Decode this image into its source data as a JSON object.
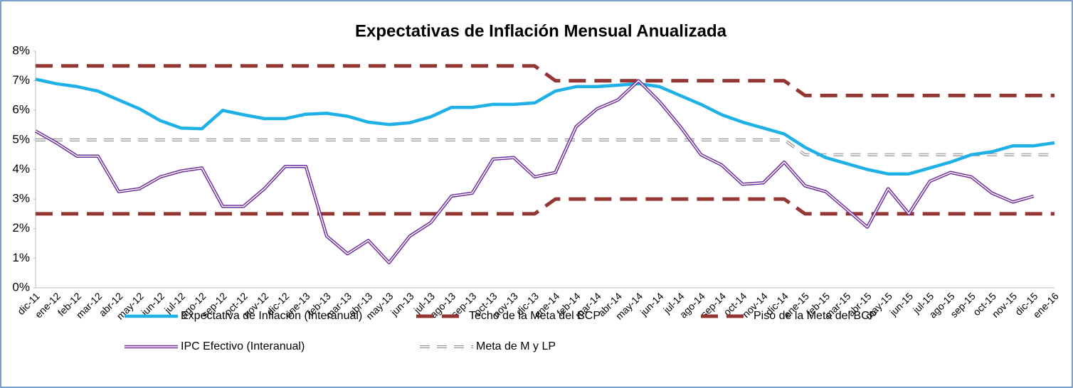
{
  "chart_data": {
    "type": "line",
    "title": "Expectativas de Inflación Mensual Anualizada",
    "categories": [
      "dic-11",
      "ene-12",
      "feb-12",
      "mar-12",
      "abr-12",
      "may-12",
      "jun-12",
      "jul-12",
      "ago-12",
      "sep-12",
      "oct-12",
      "nov-12",
      "dic-12",
      "ene-13",
      "feb-13",
      "mar-13",
      "abr-13",
      "may-13",
      "jun-13",
      "jul-13",
      "ago-13",
      "sep-13",
      "oct-13",
      "nov-13",
      "dic-13",
      "ene-14",
      "feb-14",
      "mar-14",
      "abr-14",
      "may-14",
      "jun-14",
      "jul-14",
      "ago-14",
      "sep-14",
      "oct-14",
      "nov-14",
      "dic-14",
      "ene-15",
      "feb-15",
      "mar-15",
      "abr-15",
      "may-15",
      "jun-15",
      "jul-15",
      "ago-15",
      "sep-15",
      "oct-15",
      "nov-15",
      "dic-15",
      "ene-16"
    ],
    "series": [
      {
        "name": "Expectativa de Inflación (Interanual)",
        "color": "#1fb0e6",
        "values": [
          7.05,
          6.9,
          6.8,
          6.65,
          6.35,
          6.05,
          5.65,
          5.4,
          5.38,
          6.0,
          5.85,
          5.72,
          5.72,
          5.87,
          5.9,
          5.8,
          5.6,
          5.52,
          5.58,
          5.78,
          6.1,
          6.1,
          6.2,
          6.2,
          6.25,
          6.65,
          6.8,
          6.8,
          6.85,
          6.9,
          6.8,
          6.5,
          6.2,
          5.85,
          5.6,
          5.4,
          5.2,
          4.75,
          4.4,
          4.2,
          4.0,
          3.85,
          3.85,
          4.05,
          4.25,
          4.5,
          4.6,
          4.8,
          4.8,
          4.9
        ]
      },
      {
        "name": "Techo de la Meta del BCP",
        "color": "#943634",
        "values": [
          7.5,
          7.5,
          7.5,
          7.5,
          7.5,
          7.5,
          7.5,
          7.5,
          7.5,
          7.5,
          7.5,
          7.5,
          7.5,
          7.5,
          7.5,
          7.5,
          7.5,
          7.5,
          7.5,
          7.5,
          7.5,
          7.5,
          7.5,
          7.5,
          7.5,
          7,
          7,
          7,
          7,
          7,
          7,
          7,
          7,
          7,
          7,
          7,
          7,
          6.5,
          6.5,
          6.5,
          6.5,
          6.5,
          6.5,
          6.5,
          6.5,
          6.5,
          6.5,
          6.5,
          6.5,
          6.5
        ]
      },
      {
        "name": "Piso de la Meta del BCP",
        "color": "#943634",
        "values": [
          2.5,
          2.5,
          2.5,
          2.5,
          2.5,
          2.5,
          2.5,
          2.5,
          2.5,
          2.5,
          2.5,
          2.5,
          2.5,
          2.5,
          2.5,
          2.5,
          2.5,
          2.5,
          2.5,
          2.5,
          2.5,
          2.5,
          2.5,
          2.5,
          2.5,
          3,
          3,
          3,
          3,
          3,
          3,
          3,
          3,
          3,
          3,
          3,
          3,
          2.5,
          2.5,
          2.5,
          2.5,
          2.5,
          2.5,
          2.5,
          2.5,
          2.5,
          2.5,
          2.5,
          2.5,
          2.5
        ]
      },
      {
        "name": "IPC Efectivo (Interanual)",
        "color": "#7030a0",
        "values": [
          5.3,
          4.9,
          4.45,
          4.45,
          3.25,
          3.35,
          3.75,
          3.95,
          4.05,
          2.75,
          2.75,
          3.35,
          4.1,
          4.1,
          1.75,
          1.15,
          1.6,
          0.85,
          1.75,
          2.2,
          3.1,
          3.2,
          4.35,
          4.4,
          3.75,
          3.9,
          5.45,
          6.05,
          6.35,
          7.0,
          6.3,
          5.45,
          4.5,
          4.15,
          3.5,
          3.55,
          4.25,
          3.45,
          3.25,
          2.65,
          2.05,
          3.35,
          2.5,
          3.6,
          3.9,
          3.75,
          3.2,
          2.9,
          3.1,
          null
        ]
      },
      {
        "name": "Meta de M y LP",
        "color": "#8c8c8c",
        "values": [
          5,
          5,
          5,
          5,
          5,
          5,
          5,
          5,
          5,
          5,
          5,
          5,
          5,
          5,
          5,
          5,
          5,
          5,
          5,
          5,
          5,
          5,
          5,
          5,
          5,
          5,
          5,
          5,
          5,
          5,
          5,
          5,
          5,
          5,
          5,
          5,
          5,
          4.5,
          4.5,
          4.5,
          4.5,
          4.5,
          4.5,
          4.5,
          4.5,
          4.5,
          4.5,
          4.5,
          4.5,
          4.5
        ]
      }
    ],
    "ylim": [
      0,
      8
    ],
    "yticks": [
      {
        "value": 0,
        "label": "0%"
      },
      {
        "value": 1,
        "label": "1%"
      },
      {
        "value": 2,
        "label": "2%"
      },
      {
        "value": 3,
        "label": "3%"
      },
      {
        "value": 4,
        "label": "4%"
      },
      {
        "value": 5,
        "label": "5%"
      },
      {
        "value": 6,
        "label": "6%"
      },
      {
        "value": 7,
        "label": "7%"
      },
      {
        "value": 8,
        "label": "8%"
      }
    ],
    "legend": "bottom"
  }
}
